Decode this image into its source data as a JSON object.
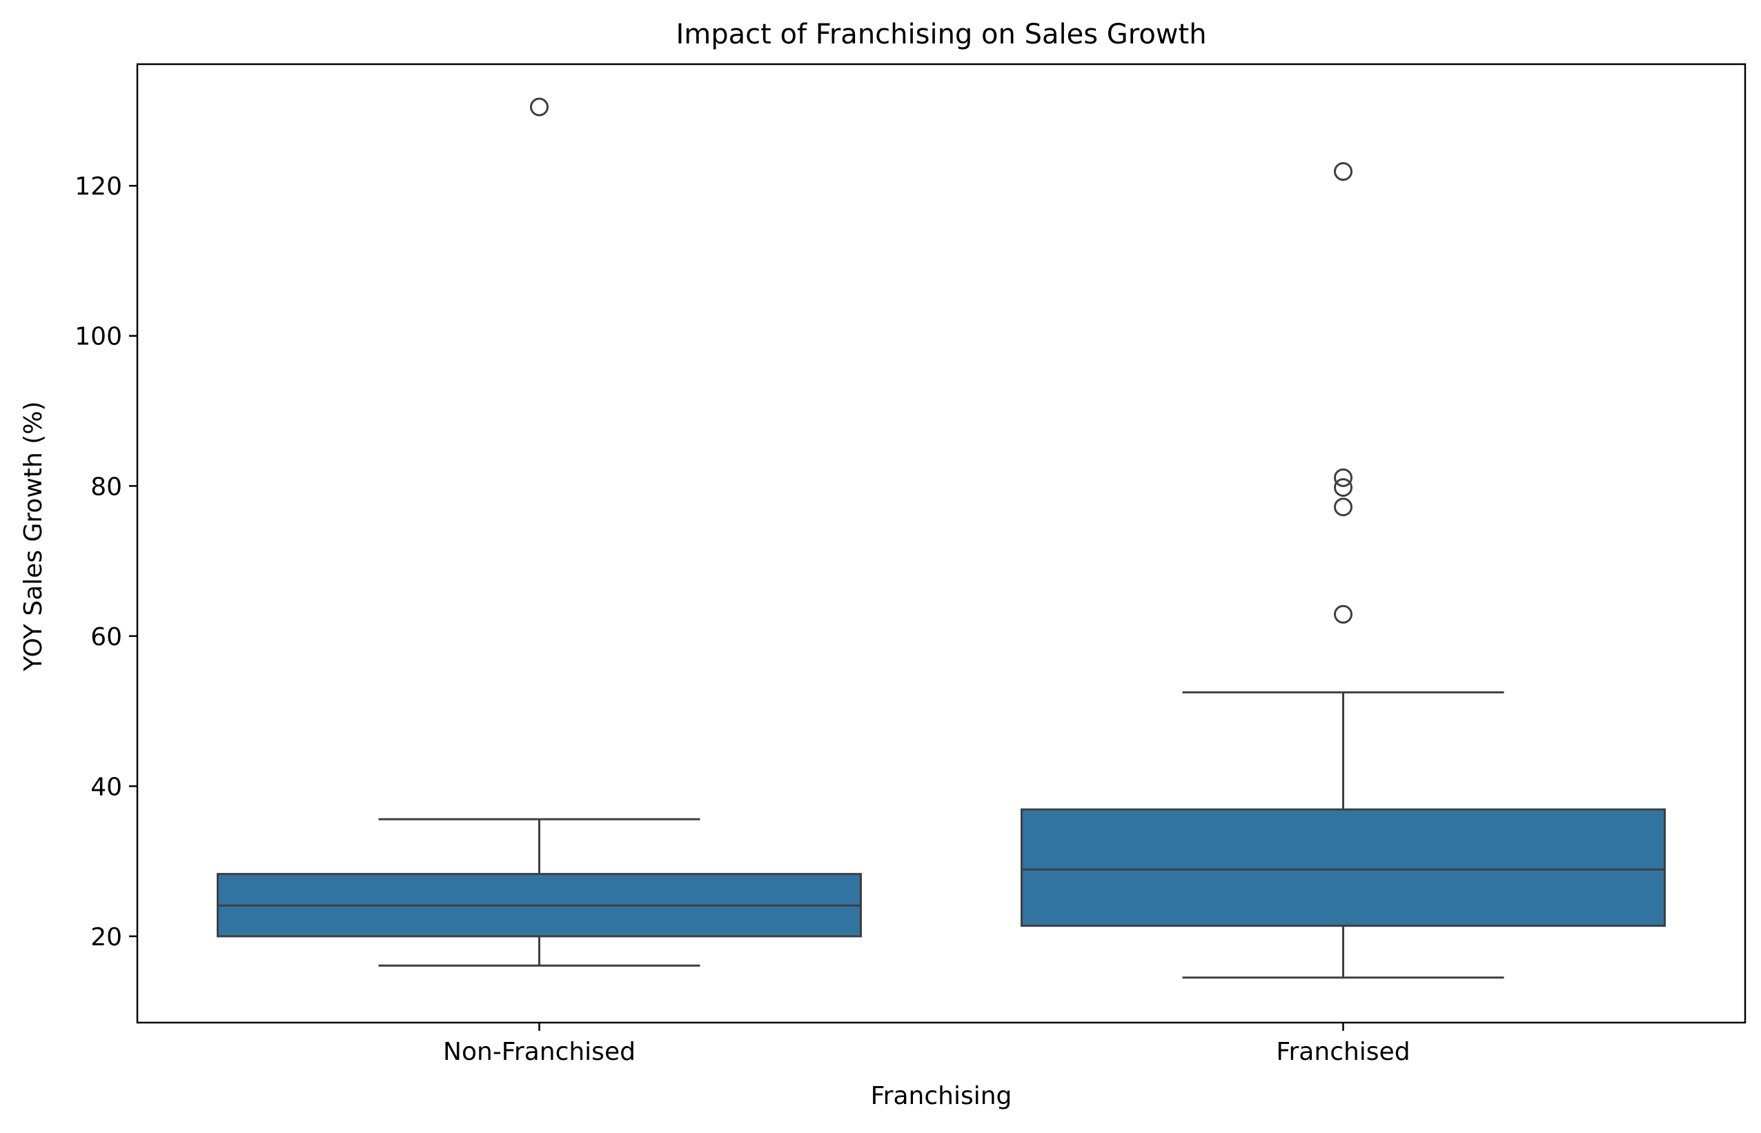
{
  "chart_data": {
    "type": "box",
    "title": "Impact of Franchising on Sales Growth",
    "xlabel": "Franchising",
    "ylabel": "YOY Sales Growth (%)",
    "ylim": [
      8.5,
      136.2
    ],
    "yticks": [
      20,
      40,
      60,
      80,
      100,
      120
    ],
    "grid": false,
    "legend": "none",
    "colors": {
      "box_fill": "#3274a1",
      "line": "#3f3f3f",
      "axis": "#000000",
      "background": "#ffffff"
    },
    "categories": [
      "Non-Franchised",
      "Franchised"
    ],
    "boxes": [
      {
        "category": "Non-Franchised",
        "whisker_low": 16.1,
        "q1": 20.0,
        "median": 24.1,
        "q3": 28.3,
        "whisker_high": 35.6,
        "outliers": [
          130.5
        ]
      },
      {
        "category": "Franchised",
        "whisker_low": 14.5,
        "q1": 21.4,
        "median": 28.9,
        "q3": 36.9,
        "whisker_high": 52.5,
        "outliers": [
          121.9,
          81.1,
          79.8,
          77.2,
          62.9
        ]
      }
    ]
  }
}
